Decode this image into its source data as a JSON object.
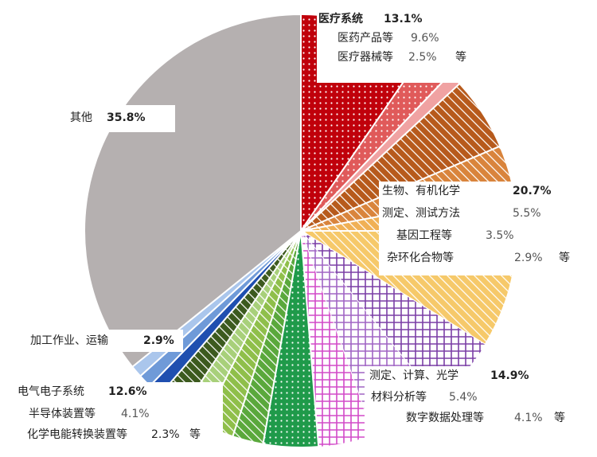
{
  "chart_data": {
    "type": "pie",
    "start_angle_deg": 0,
    "direction": "clockwise",
    "slices": [
      {
        "group": "医疗系统",
        "name": "医药产品等",
        "value": 9.6,
        "color": "#c0000b",
        "pattern": "dots"
      },
      {
        "group": "医疗系统",
        "name": "医疗器械等",
        "value": 2.5,
        "color": "#e05a5a",
        "pattern": "dots"
      },
      {
        "group": "医疗系统",
        "name": "等",
        "value": 1.0,
        "color": "#f0a2a2",
        "pattern": "none"
      },
      {
        "group": "生物、有机化学",
        "name": "测定、测试方法",
        "value": 5.5,
        "color": "#b75a1c",
        "pattern": "diag"
      },
      {
        "group": "生物、有机化学",
        "name": "基因工程等",
        "value": 3.5,
        "color": "#d9843c",
        "pattern": "diag"
      },
      {
        "group": "生物、有机化学",
        "name": "杂环化合物等",
        "value": 2.9,
        "color": "#f0b055",
        "pattern": "diag"
      },
      {
        "group": "生物、有机化学",
        "name": "等",
        "value": 8.8,
        "color": "#f6c96a",
        "pattern": "diag"
      },
      {
        "group": "测定、计算、光学",
        "name": "等",
        "value": 5.4,
        "color": "#7b3fa6",
        "pattern": "grid"
      },
      {
        "group": "测定、计算、光学",
        "name": "材料分析等",
        "value": 5.4,
        "color": "#a065c4",
        "pattern": "grid"
      },
      {
        "group": "测定、计算、光学",
        "name": "数字数据处理等",
        "value": 4.1,
        "color": "#d24ac8",
        "pattern": "grid"
      },
      {
        "group": "电气电子系统",
        "name": "半导体装置等",
        "value": 4.1,
        "color": "#1f9a4a",
        "pattern": "dots"
      },
      {
        "group": "电气电子系统",
        "name": "化学电能转换装置等",
        "value": 2.3,
        "color": "#5aa83c",
        "pattern": "diag"
      },
      {
        "group": "电气电子系统",
        "name": "等",
        "value": 2.4,
        "color": "#8fbf4a",
        "pattern": "diag"
      },
      {
        "group": "电气电子系统",
        "name": "等",
        "value": 1.8,
        "color": "#a8d07a",
        "pattern": "diag"
      },
      {
        "group": "电气电子系统",
        "name": "等",
        "value": 2.0,
        "color": "#3c5a1e",
        "pattern": "diag"
      },
      {
        "group": "加工作业、运输",
        "name": "等",
        "value": 1.0,
        "color": "#1f4fb0",
        "pattern": "none"
      },
      {
        "group": "加工作业、运输",
        "name": "等",
        "value": 1.0,
        "color": "#6f9ad8",
        "pattern": "none"
      },
      {
        "group": "加工作业、运输",
        "name": "等",
        "value": 0.9,
        "color": "#aac6ec",
        "pattern": "none"
      },
      {
        "group": "其他",
        "name": "其他",
        "value": 35.8,
        "color": "#b5b0b0",
        "pattern": "none"
      }
    ],
    "labels": {
      "medical": {
        "title": "医疗系统",
        "pct": "13.1%",
        "sub": [
          [
            "医药产品等",
            "9.6%"
          ],
          [
            "医疗器械等",
            "2.5%"
          ]
        ],
        "suffix": "等"
      },
      "bio": {
        "title": "生物、有机化学",
        "pct": "20.7%",
        "sub": [
          [
            "测定、测试方法",
            "5.5%"
          ],
          [
            "基因工程等",
            "3.5%"
          ],
          [
            "杂环化合物等",
            "2.9%"
          ]
        ],
        "suffix": "等"
      },
      "measure": {
        "title": "测定、计算、光学",
        "pct": "14.9%",
        "sub": [
          [
            "材料分析等",
            "5.4%"
          ],
          [
            "数字数据处理等",
            "4.1%"
          ]
        ],
        "suffix": "等"
      },
      "electric": {
        "title": "电气电子系统",
        "pct": "12.6%",
        "sub": [
          [
            "半导体装置等",
            "4.1%"
          ],
          [
            "化学电能转换装置等",
            "2.3%"
          ]
        ],
        "suffix": "等"
      },
      "process": {
        "title": "加工作业、运输",
        "pct": "2.9%"
      },
      "other": {
        "title": "其他",
        "pct": "35.8%"
      }
    }
  }
}
